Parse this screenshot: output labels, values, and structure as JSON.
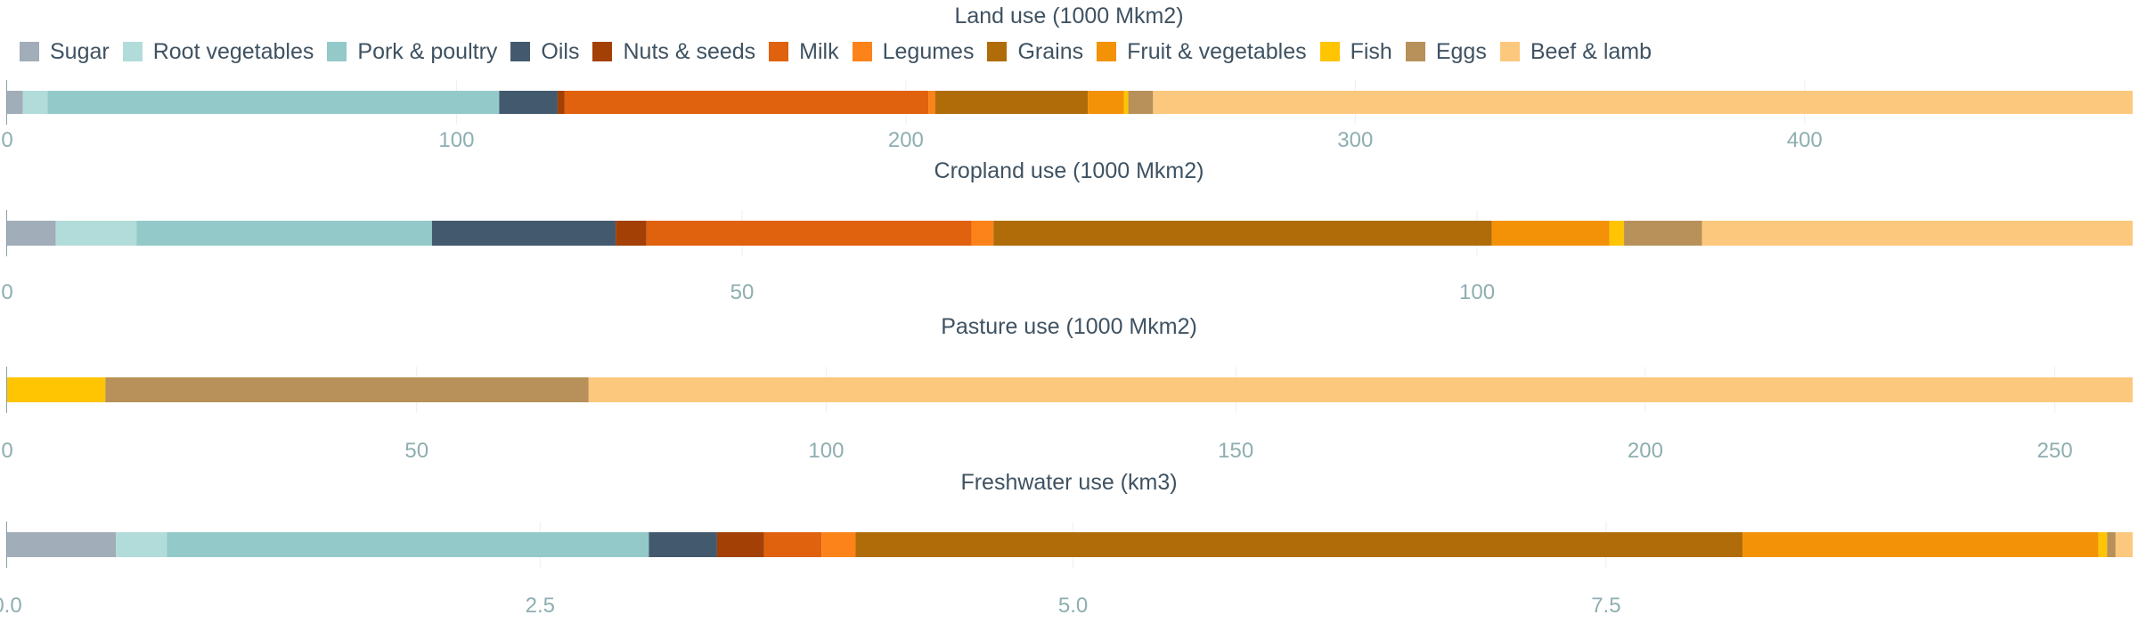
{
  "colors": {
    "Sugar": "#a1adb8",
    "Root vegetables": "#b2dcd9",
    "Pork & poultry": "#93c9c9",
    "Oils": "#435a6e",
    "Nuts & seeds": "#a34006",
    "Milk": "#e0610e",
    "Legumes": "#fb8319",
    "Grains": "#b06c08",
    "Fruit & vegetables": "#f39206",
    "Fish": "#ffc402",
    "Eggs": "#b79159",
    "Beef & lamb": "#fcc87d"
  },
  "legend": [
    "Sugar",
    "Root vegetables",
    "Pork & poultry",
    "Oils",
    "Nuts & seeds",
    "Milk",
    "Legumes",
    "Grains",
    "Fruit & vegetables",
    "Fish",
    "Eggs",
    "Beef & lamb"
  ],
  "chart_data": [
    {
      "type": "bar",
      "title": "Land use (1000 Mkm2)",
      "xlim": [
        0,
        473
      ],
      "ticks": [
        {
          "value": 0,
          "label": "0"
        },
        {
          "value": 100,
          "label": "100"
        },
        {
          "value": 200,
          "label": "200"
        },
        {
          "value": 300,
          "label": "300"
        },
        {
          "value": 400,
          "label": "400"
        }
      ],
      "segments": [
        {
          "name": "Sugar",
          "value": 3.5
        },
        {
          "name": "Root vegetables",
          "value": 5.5
        },
        {
          "name": "Pork & poultry",
          "value": 100.5
        },
        {
          "name": "Oils",
          "value": 13
        },
        {
          "name": "Nuts & seeds",
          "value": 1.5
        },
        {
          "name": "Milk",
          "value": 81
        },
        {
          "name": "Legumes",
          "value": 1.5
        },
        {
          "name": "Grains",
          "value": 34
        },
        {
          "name": "Fruit & vegetables",
          "value": 8
        },
        {
          "name": "Fish",
          "value": 1
        },
        {
          "name": "Eggs",
          "value": 5.5
        },
        {
          "name": "Beef & lamb",
          "value": 218
        }
      ]
    },
    {
      "type": "bar",
      "title": "Cropland use (1000 Mkm2)",
      "xlim": [
        0,
        144.6
      ],
      "ticks": [
        {
          "value": 0,
          "label": "0"
        },
        {
          "value": 50,
          "label": "50"
        },
        {
          "value": 100,
          "label": "100"
        }
      ],
      "segments": [
        {
          "name": "Sugar",
          "value": 3.3
        },
        {
          "name": "Root vegetables",
          "value": 5.5
        },
        {
          "name": "Pork & poultry",
          "value": 20.1
        },
        {
          "name": "Oils",
          "value": 12.5
        },
        {
          "name": "Nuts & seeds",
          "value": 2.1
        },
        {
          "name": "Milk",
          "value": 22.1
        },
        {
          "name": "Legumes",
          "value": 1.5
        },
        {
          "name": "Grains",
          "value": 33.9
        },
        {
          "name": "Fruit & vegetables",
          "value": 8
        },
        {
          "name": "Fish",
          "value": 1
        },
        {
          "name": "Eggs",
          "value": 5.3
        },
        {
          "name": "Beef & lamb",
          "value": 29.3
        }
      ]
    },
    {
      "type": "bar",
      "title": "Pasture use (1000 Mkm2)",
      "xlim": [
        0,
        259.5
      ],
      "ticks": [
        {
          "value": 0,
          "label": "0"
        },
        {
          "value": 50,
          "label": "50"
        },
        {
          "value": 100,
          "label": "100"
        },
        {
          "value": 150,
          "label": "150"
        },
        {
          "value": 200,
          "label": "200"
        },
        {
          "value": 250,
          "label": "250"
        }
      ],
      "segments": [
        {
          "name": "Fish",
          "value": 12
        },
        {
          "name": "Eggs",
          "value": 59
        },
        {
          "name": "Beef & lamb",
          "value": 188.5
        }
      ]
    },
    {
      "type": "bar",
      "title": "Freshwater use (km3)",
      "xlim": [
        0,
        9.97
      ],
      "ticks": [
        {
          "value": 0,
          "label": "0.0"
        },
        {
          "value": 2.5,
          "label": "2.5"
        },
        {
          "value": 5,
          "label": "5.0"
        },
        {
          "value": 7.5,
          "label": "7.5"
        }
      ],
      "segments": [
        {
          "name": "Sugar",
          "value": 0.51
        },
        {
          "name": "Root vegetables",
          "value": 0.24
        },
        {
          "name": "Pork & poultry",
          "value": 2.26
        },
        {
          "name": "Oils",
          "value": 0.32
        },
        {
          "name": "Nuts & seeds",
          "value": 0.22
        },
        {
          "name": "Milk",
          "value": 0.27
        },
        {
          "name": "Legumes",
          "value": 0.16
        },
        {
          "name": "Grains",
          "value": 4.16
        },
        {
          "name": "Fruit & vegetables",
          "value": 1.67
        },
        {
          "name": "Fish",
          "value": 0.04
        },
        {
          "name": "Eggs",
          "value": 0.04
        },
        {
          "name": "Beef & lamb",
          "value": 0.08
        }
      ]
    }
  ]
}
